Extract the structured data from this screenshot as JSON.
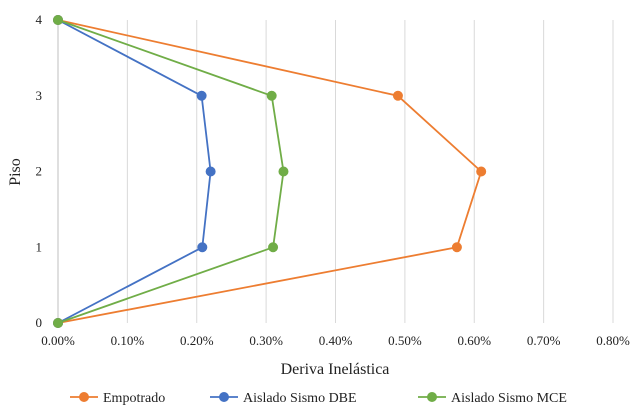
{
  "chart_data": {
    "type": "line",
    "x_format": "percent",
    "xlabel": "Deriva Inelástica",
    "ylabel": "Piso",
    "xlim": [
      0,
      0.8
    ],
    "ylim": [
      0,
      4
    ],
    "x_ticks": [
      "0.00%",
      "0.10%",
      "0.20%",
      "0.30%",
      "0.40%",
      "0.50%",
      "0.60%",
      "0.70%",
      "0.80%"
    ],
    "y_ticks": [
      "0",
      "1",
      "2",
      "3",
      "4"
    ],
    "grid": "vertical",
    "legend_position": "bottom",
    "series": [
      {
        "name": "Empotrado",
        "color": "#ED7D31",
        "points": [
          {
            "x": 0.0,
            "y": 0
          },
          {
            "x": 0.575,
            "y": 1
          },
          {
            "x": 0.61,
            "y": 2
          },
          {
            "x": 0.49,
            "y": 3
          },
          {
            "x": 0.0,
            "y": 4
          }
        ]
      },
      {
        "name": "Aislado Sismo DBE",
        "color": "#4472C4",
        "points": [
          {
            "x": 0.0,
            "y": 0
          },
          {
            "x": 0.208,
            "y": 1
          },
          {
            "x": 0.22,
            "y": 2
          },
          {
            "x": 0.207,
            "y": 3
          },
          {
            "x": 0.0,
            "y": 4
          }
        ]
      },
      {
        "name": "Aislado Sismo MCE",
        "color": "#70AD47",
        "points": [
          {
            "x": 0.0,
            "y": 0
          },
          {
            "x": 0.31,
            "y": 1
          },
          {
            "x": 0.325,
            "y": 2
          },
          {
            "x": 0.308,
            "y": 3
          },
          {
            "x": 0.0,
            "y": 4
          }
        ]
      }
    ]
  }
}
